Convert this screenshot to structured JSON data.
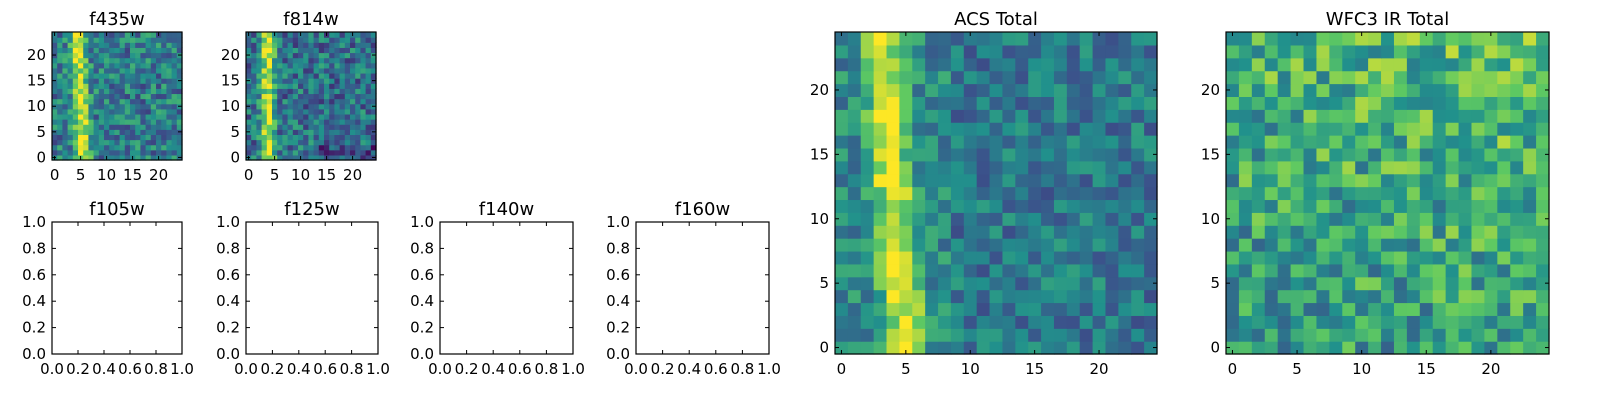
{
  "figure": {
    "colormap": [
      "#440154",
      "#3b528b",
      "#21918c",
      "#5ec962",
      "#fde725"
    ],
    "axis_color": "#000000",
    "background": "#ffffff"
  },
  "chart_data": [
    {
      "id": "f435w",
      "type": "heatmap",
      "title": "f435w",
      "grid_size": 25,
      "xlim": [
        0,
        25
      ],
      "ylim": [
        0,
        25
      ],
      "xticks": [
        0,
        5,
        10,
        15,
        20
      ],
      "yticks": [
        0,
        5,
        10,
        15,
        20
      ],
      "profile": "bright vertical stripe near x=4-6 over noisy background",
      "empty": false
    },
    {
      "id": "f814w",
      "type": "heatmap",
      "title": "f814w",
      "grid_size": 25,
      "xlim": [
        0,
        25
      ],
      "ylim": [
        0,
        25
      ],
      "xticks": [
        0,
        5,
        10,
        15,
        20
      ],
      "yticks": [
        0,
        5,
        10,
        15,
        20
      ],
      "profile": "bright vertical stripe near x=3-5 over noisy background",
      "empty": false
    },
    {
      "id": "f105w",
      "type": "empty",
      "title": "f105w",
      "xlim": [
        0,
        1
      ],
      "ylim": [
        0,
        1
      ],
      "xticks": [
        "0.0",
        "0.2",
        "0.4",
        "0.6",
        "0.8",
        "1.0"
      ],
      "yticks": [
        "0.0",
        "0.2",
        "0.4",
        "0.6",
        "0.8",
        "1.0"
      ],
      "empty": true
    },
    {
      "id": "f125w",
      "type": "empty",
      "title": "f125w",
      "xlim": [
        0,
        1
      ],
      "ylim": [
        0,
        1
      ],
      "xticks": [
        "0.0",
        "0.2",
        "0.4",
        "0.6",
        "0.8",
        "1.0"
      ],
      "yticks": [
        "0.0",
        "0.2",
        "0.4",
        "0.6",
        "0.8",
        "1.0"
      ],
      "empty": true
    },
    {
      "id": "f140w",
      "type": "empty",
      "title": "f140w",
      "xlim": [
        0,
        1
      ],
      "ylim": [
        0,
        1
      ],
      "xticks": [
        "0.0",
        "0.2",
        "0.4",
        "0.6",
        "0.8",
        "1.0"
      ],
      "yticks": [
        "0.0",
        "0.2",
        "0.4",
        "0.6",
        "0.8",
        "1.0"
      ],
      "empty": true
    },
    {
      "id": "f160w",
      "type": "empty",
      "title": "f160w",
      "xlim": [
        0,
        1
      ],
      "ylim": [
        0,
        1
      ],
      "xticks": [
        "0.0",
        "0.2",
        "0.4",
        "0.6",
        "0.8",
        "1.0"
      ],
      "yticks": [
        "0.0",
        "0.2",
        "0.4",
        "0.6",
        "0.8",
        "1.0"
      ],
      "empty": true
    },
    {
      "id": "acs_total",
      "type": "heatmap",
      "title": "ACS Total",
      "grid_size": 25,
      "xlim": [
        0,
        25
      ],
      "ylim": [
        0,
        25
      ],
      "xticks": [
        0,
        5,
        10,
        15,
        20
      ],
      "yticks": [
        0,
        5,
        10,
        15,
        20
      ],
      "profile": "bright vertical stripe near x=3-6, slight lean right toward bottom; mid-level noise elsewhere",
      "empty": false
    },
    {
      "id": "wfc3_ir_total",
      "type": "heatmap",
      "title": "WFC3 IR Total",
      "grid_size": 25,
      "xlim": [
        0,
        25
      ],
      "ylim": [
        0,
        25
      ],
      "xticks": [
        0,
        5,
        10,
        15,
        20
      ],
      "yticks": [
        0,
        5,
        10,
        15,
        20
      ],
      "profile": "noisy field, brighter toward upper right",
      "empty": false
    }
  ]
}
